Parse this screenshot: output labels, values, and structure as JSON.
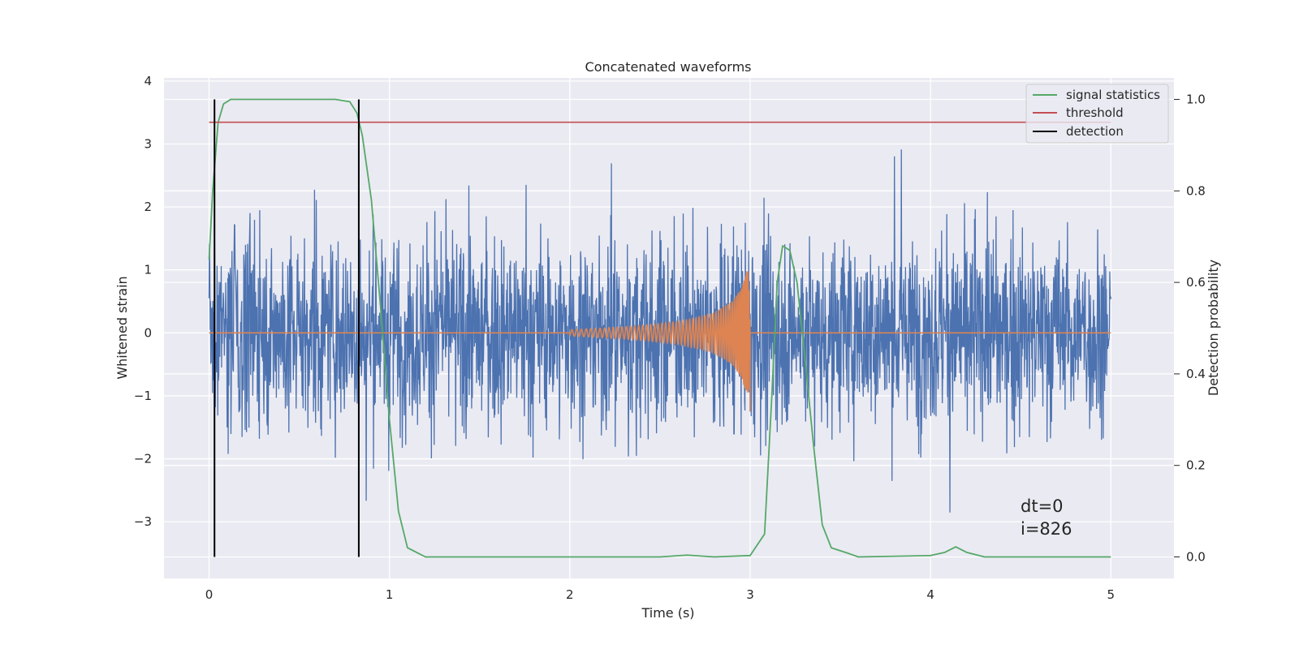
{
  "chart_data": {
    "type": "line",
    "title": "Concatenated waveforms",
    "xlabel": "Time (s)",
    "ylabel": "Whitened strain",
    "y2label": "Detection probability",
    "xlim": [
      -0.25,
      5.35
    ],
    "ylim": [
      -3.9,
      4.05
    ],
    "y2lim": [
      -0.047,
      1.047
    ],
    "xticks": [
      "0",
      "1",
      "2",
      "3",
      "4",
      "5"
    ],
    "yticks": [
      "−3",
      "−2",
      "−1",
      "0",
      "1",
      "2",
      "3",
      "4"
    ],
    "y2ticks": [
      "0.0",
      "0.2",
      "0.4",
      "0.6",
      "0.8",
      "1.0"
    ],
    "grid": true,
    "legend_placement": "upper right",
    "series": [
      {
        "name": "",
        "axis": "left",
        "color": "#4c72b0",
        "description_values": "noisy whitened strain, amplitude roughly within ±3.6 over t = 0 to 5 s",
        "x_range": [
          0,
          5
        ]
      },
      {
        "name": "",
        "axis": "left",
        "color": "#dd8452",
        "x": [
          0,
          2.0,
          2.2,
          2.4,
          2.6,
          2.7,
          2.8,
          2.9,
          2.95,
          2.99,
          3.0,
          5.0
        ],
        "envelope": [
          0,
          0.05,
          0.08,
          0.12,
          0.18,
          0.24,
          0.32,
          0.5,
          0.7,
          1.05,
          0,
          0
        ]
      },
      {
        "name": "signal statistics",
        "axis": "right",
        "color": "#55a868",
        "x": [
          0.0,
          0.02,
          0.05,
          0.08,
          0.12,
          0.3,
          0.5,
          0.7,
          0.78,
          0.82,
          0.85,
          0.9,
          0.95,
          1.0,
          1.05,
          1.1,
          1.2,
          2.0,
          2.5,
          2.65,
          2.8,
          3.0,
          3.08,
          3.12,
          3.15,
          3.18,
          3.22,
          3.26,
          3.3,
          3.35,
          3.4,
          3.45,
          3.55,
          3.6,
          4.0,
          4.08,
          4.14,
          4.2,
          4.3,
          5.0
        ],
        "values": [
          0.65,
          0.8,
          0.95,
          0.99,
          1.0,
          1.0,
          1.0,
          1.0,
          0.995,
          0.97,
          0.92,
          0.78,
          0.55,
          0.3,
          0.1,
          0.02,
          0.0,
          0.0,
          0.0,
          0.004,
          0.0,
          0.003,
          0.05,
          0.35,
          0.6,
          0.68,
          0.67,
          0.6,
          0.45,
          0.25,
          0.07,
          0.02,
          0.007,
          0.0,
          0.003,
          0.01,
          0.022,
          0.01,
          0.0,
          0.0
        ]
      },
      {
        "name": "threshold",
        "axis": "right",
        "color": "#c44e52",
        "x": [
          0,
          5
        ],
        "values": [
          0.95,
          0.95
        ]
      },
      {
        "name": "detection",
        "axis": "right",
        "color": "#000000",
        "x": [
          0.03,
          0.83
        ],
        "values": [
          0,
          1
        ]
      }
    ],
    "annotations": [
      "dt=0",
      "i=826"
    ]
  }
}
